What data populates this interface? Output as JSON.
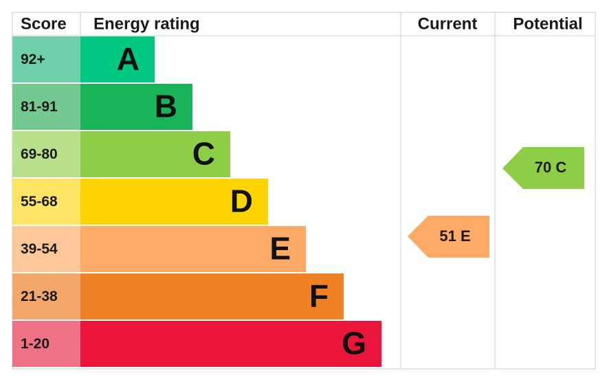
{
  "header": {
    "score": "Score",
    "energy_rating": "Energy rating",
    "current": "Current",
    "potential": "Potential"
  },
  "bands": [
    {
      "score": "92+",
      "letter": "A",
      "color": "#00c781",
      "light": "#6fcfa8"
    },
    {
      "score": "81-91",
      "letter": "B",
      "color": "#19b459",
      "light": "#73c990"
    },
    {
      "score": "69-80",
      "letter": "C",
      "color": "#8dce46",
      "light": "#b9e08a"
    },
    {
      "score": "55-68",
      "letter": "D",
      "color": "#ffd500",
      "light": "#ffe566"
    },
    {
      "score": "39-54",
      "letter": "E",
      "color": "#fcaa65",
      "light": "#fdc79a"
    },
    {
      "score": "21-38",
      "letter": "F",
      "color": "#ef8023",
      "light": "#f4a76a"
    },
    {
      "score": "1-20",
      "letter": "G",
      "color": "#e9153b",
      "light": "#f07286"
    }
  ],
  "current": {
    "label": "51 E",
    "color": "#fcaa65"
  },
  "potential": {
    "label": "70 C",
    "color": "#8dce46"
  }
}
